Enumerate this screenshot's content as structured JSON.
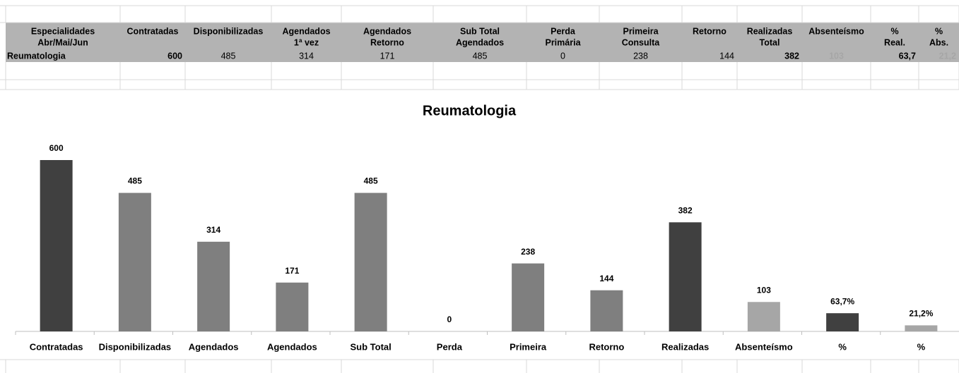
{
  "table": {
    "headers": [
      [
        "Especialidades",
        "Abr/Mai/Jun"
      ],
      [
        "Contratadas"
      ],
      [
        "Disponibilizadas"
      ],
      [
        "Agendados",
        "1ª vez"
      ],
      [
        "Agendados",
        "Retorno"
      ],
      [
        "Sub Total",
        "Agendados"
      ],
      [
        "Perda",
        "Primária"
      ],
      [
        "Primeira",
        "Consulta"
      ],
      [
        "Retorno"
      ],
      [
        "Realizadas",
        "Total"
      ],
      [
        "Absenteísmo"
      ],
      [
        "%",
        "Real."
      ],
      [
        "%",
        "Abs."
      ]
    ],
    "rows": [
      [
        "Reumatologia",
        "600",
        "485",
        "314",
        "171",
        "485",
        "0",
        "238",
        "144",
        "382",
        "103",
        "63,7",
        "21,2"
      ]
    ]
  },
  "chart_data": {
    "type": "bar",
    "title": "Reumatologia",
    "categories": [
      "Contratadas",
      "Disponibilizadas",
      "Agendados",
      "Agendados",
      "Sub Total",
      "Perda",
      "Primeira",
      "Retorno",
      "Realizadas",
      "Absenteísmo",
      "%",
      "%"
    ],
    "values": [
      600,
      485,
      314,
      171,
      485,
      0,
      238,
      144,
      382,
      103,
      63.7,
      21.2
    ],
    "value_labels": [
      "600",
      "485",
      "314",
      "171",
      "485",
      "0",
      "238",
      "144",
      "382",
      "103",
      "63,7%",
      "21,2%"
    ],
    "colors": [
      "#404040",
      "#7f7f7f",
      "#7f7f7f",
      "#7f7f7f",
      "#7f7f7f",
      "#7f7f7f",
      "#7f7f7f",
      "#7f7f7f",
      "#404040",
      "#a6a6a6",
      "#404040",
      "#a6a6a6"
    ]
  }
}
